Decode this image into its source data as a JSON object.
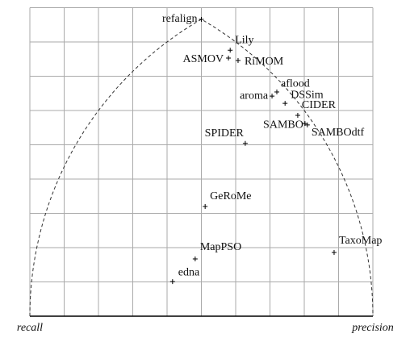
{
  "chart_data": {
    "type": "scatter",
    "labels": [
      "refalign",
      "Lily",
      "ASMOV",
      "RiMOM",
      "aroma",
      "aflood",
      "DSSim",
      "CIDER",
      "SAMBO",
      "SAMBOdtf",
      "SPIDER",
      "GeRoMe",
      "MapPSO",
      "edna",
      "TaxoMap"
    ],
    "x": [
      0.5,
      0.584,
      0.579,
      0.607,
      0.706,
      0.72,
      0.744,
      0.781,
      0.802,
      0.809,
      0.628,
      0.511,
      0.482,
      0.416,
      0.887
    ],
    "values": [
      0.866,
      0.776,
      0.753,
      0.746,
      0.642,
      0.654,
      0.621,
      0.586,
      0.562,
      0.558,
      0.504,
      0.32,
      0.167,
      0.101,
      0.186
    ],
    "xlim": [
      0,
      1
    ],
    "ylim": [
      0,
      0.9
    ],
    "xticks": [
      0,
      0.1,
      0.2,
      0.3,
      0.4,
      0.5,
      0.6,
      0.7,
      0.8,
      0.9,
      1
    ],
    "yticks": [
      0,
      0.1,
      0.2,
      0.3,
      0.4,
      0.5,
      0.6,
      0.7,
      0.8,
      0.9
    ],
    "grid": true,
    "corner_left": "recall",
    "corner_right": "precision"
  }
}
